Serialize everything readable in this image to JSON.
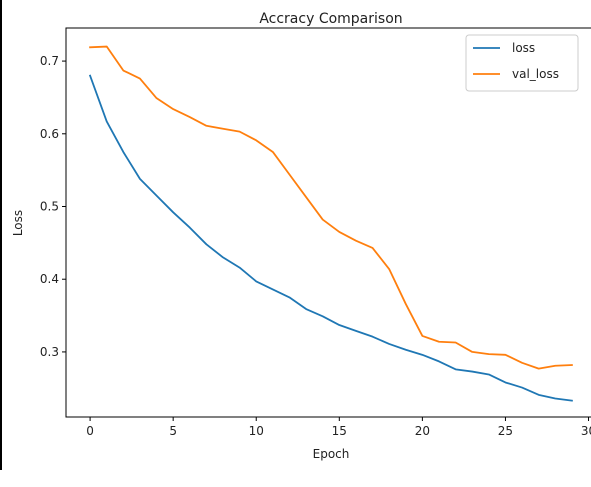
{
  "chart_data": {
    "type": "line",
    "title": "Accracy Comparison",
    "xlabel": "Epoch",
    "ylabel": "Loss",
    "xlim": [
      -1.45,
      30.45
    ],
    "ylim": [
      0.2105,
      0.7455
    ],
    "xticks": [
      0,
      5,
      10,
      15,
      20,
      25,
      30
    ],
    "yticks": [
      0.3,
      0.4,
      0.5,
      0.6,
      0.7
    ],
    "ytick_labels": [
      "0.3",
      "0.4",
      "0.5",
      "0.6",
      "0.7"
    ],
    "grid": false,
    "legend_position": "top-right",
    "x": [
      0,
      1,
      2,
      3,
      4,
      5,
      6,
      7,
      8,
      9,
      10,
      11,
      12,
      13,
      14,
      15,
      16,
      17,
      18,
      19,
      20,
      21,
      22,
      23,
      24,
      25,
      26,
      27,
      28,
      29
    ],
    "series": [
      {
        "name": "loss",
        "color": "#1f77b4",
        "values": [
          0.68,
          0.617,
          0.575,
          0.538,
          0.515,
          0.492,
          0.471,
          0.448,
          0.43,
          0.416,
          0.397,
          0.386,
          0.375,
          0.359,
          0.349,
          0.337,
          0.329,
          0.321,
          0.311,
          0.303,
          0.296,
          0.287,
          0.276,
          0.273,
          0.269,
          0.258,
          0.251,
          0.241,
          0.236,
          0.233
        ]
      },
      {
        "name": "val_loss",
        "color": "#ff7f0e",
        "values": [
          0.719,
          0.72,
          0.687,
          0.676,
          0.649,
          0.634,
          0.623,
          0.611,
          0.607,
          0.603,
          0.591,
          0.575,
          0.544,
          0.513,
          0.482,
          0.465,
          0.453,
          0.443,
          0.414,
          0.366,
          0.322,
          0.314,
          0.313,
          0.3,
          0.297,
          0.296,
          0.285,
          0.277,
          0.281,
          0.282
        ]
      }
    ]
  }
}
